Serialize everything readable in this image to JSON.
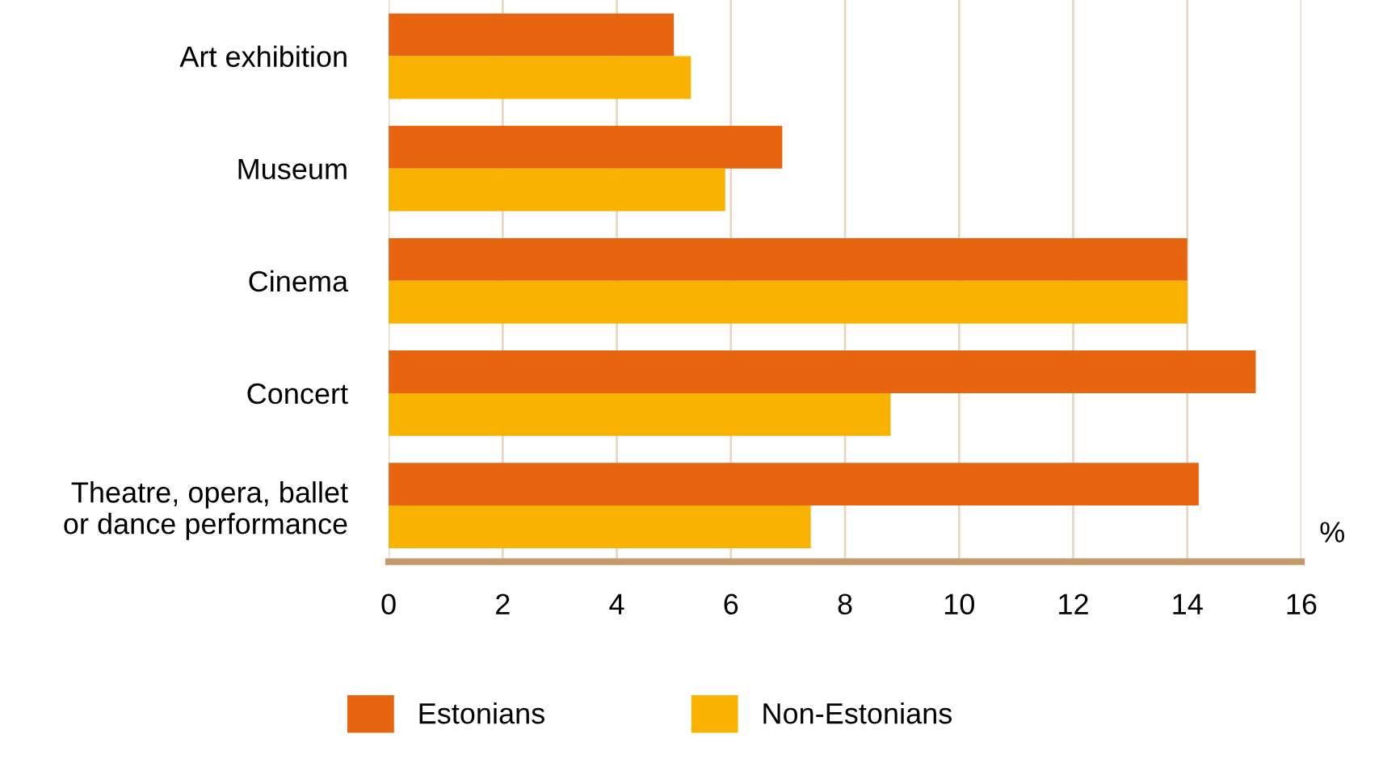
{
  "chart_data": {
    "type": "bar",
    "orientation": "horizontal",
    "categories": [
      "Art exhibition",
      "Museum",
      "Cinema",
      "Concert",
      "Theatre, opera, ballet\nor dance performance"
    ],
    "series": [
      {
        "name": "Estonians",
        "color": "#e8650f",
        "values": [
          5.0,
          6.9,
          14.0,
          15.2,
          14.2
        ]
      },
      {
        "name": "Non-Estonians",
        "color": "#f9b200",
        "values": [
          5.3,
          5.9,
          14.0,
          8.8,
          7.4
        ]
      }
    ],
    "xlabel": "%",
    "xlim": [
      0,
      16
    ],
    "xticks": [
      0,
      2,
      4,
      6,
      8,
      10,
      12,
      14,
      16
    ],
    "grid": "x",
    "legend": "bottom"
  }
}
